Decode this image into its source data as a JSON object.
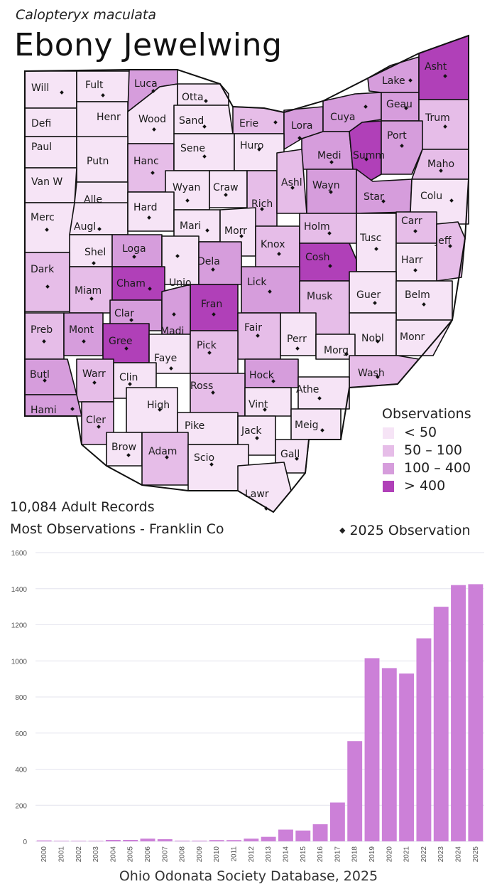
{
  "header": {
    "scientific_name": "Calopteryx maculata",
    "common_name": "Ebony Jewelwing"
  },
  "legend": {
    "title": "Observations",
    "items": [
      {
        "label": "< 50",
        "color": "#f6e4f6"
      },
      {
        "label": "50 – 100",
        "color": "#e6bde8"
      },
      {
        "label": "100 – 400",
        "color": "#d69ddc"
      },
      {
        "label": "> 400",
        "color": "#b040b8"
      }
    ]
  },
  "stats": {
    "records": "10,084 Adult Records",
    "most_observations": "Most Observations - Franklin Co",
    "obs_2025_label": "2025  Observation"
  },
  "source": "Ohio Odonata Society Database, 2025",
  "colors": {
    "lt50": "#f6e4f6",
    "c50_100": "#e6bde8",
    "c100_400": "#d69ddc",
    "gt400": "#b040b8",
    "bar": "#cc80d8"
  },
  "counties": [
    {
      "name": "Will",
      "cat": 0,
      "dot": true
    },
    {
      "name": "Fult",
      "cat": 0,
      "dot": true
    },
    {
      "name": "Luca",
      "cat": 2,
      "dot": true
    },
    {
      "name": "Otta",
      "cat": 0,
      "dot": true
    },
    {
      "name": "Defi",
      "cat": 0,
      "dot": false
    },
    {
      "name": "Henr",
      "cat": 0,
      "dot": false
    },
    {
      "name": "Wood",
      "cat": 0,
      "dot": true
    },
    {
      "name": "Sand",
      "cat": 0,
      "dot": true
    },
    {
      "name": "Erie",
      "cat": 1,
      "dot": true
    },
    {
      "name": "Lora",
      "cat": 2,
      "dot": true
    },
    {
      "name": "Cuya",
      "cat": 2,
      "dot": true
    },
    {
      "name": "Lake",
      "cat": 2,
      "dot": true
    },
    {
      "name": "Geau",
      "cat": 2,
      "dot": true
    },
    {
      "name": "Asht",
      "cat": 3,
      "dot": true
    },
    {
      "name": "Trum",
      "cat": 1,
      "dot": true
    },
    {
      "name": "Paul",
      "cat": 0,
      "dot": false
    },
    {
      "name": "Putn",
      "cat": 0,
      "dot": false
    },
    {
      "name": "Hanc",
      "cat": 1,
      "dot": true
    },
    {
      "name": "Sene",
      "cat": 0,
      "dot": true
    },
    {
      "name": "Huro",
      "cat": 0,
      "dot": true
    },
    {
      "name": "Medi",
      "cat": 2,
      "dot": true
    },
    {
      "name": "Summ",
      "cat": 3,
      "dot": true
    },
    {
      "name": "Port",
      "cat": 2,
      "dot": true
    },
    {
      "name": "Maho",
      "cat": 1,
      "dot": true
    },
    {
      "name": "Van W",
      "cat": 0,
      "dot": false
    },
    {
      "name": "Alle",
      "cat": 0,
      "dot": false
    },
    {
      "name": "Wyan",
      "cat": 0,
      "dot": true
    },
    {
      "name": "Craw",
      "cat": 0,
      "dot": true
    },
    {
      "name": "Rich",
      "cat": 1,
      "dot": true
    },
    {
      "name": "Ashl",
      "cat": 1,
      "dot": true
    },
    {
      "name": "Wayn",
      "cat": 2,
      "dot": true
    },
    {
      "name": "Star",
      "cat": 2,
      "dot": true
    },
    {
      "name": "Colu",
      "cat": 0,
      "dot": true
    },
    {
      "name": "Merc",
      "cat": 0,
      "dot": true
    },
    {
      "name": "Augl",
      "cat": 0,
      "dot": true
    },
    {
      "name": "Hard",
      "cat": 0,
      "dot": true
    },
    {
      "name": "Mari",
      "cat": 0,
      "dot": true
    },
    {
      "name": "Morr",
      "cat": 0,
      "dot": true
    },
    {
      "name": "Knox",
      "cat": 1,
      "dot": true
    },
    {
      "name": "Holm",
      "cat": 1,
      "dot": true
    },
    {
      "name": "Tusc",
      "cat": 0,
      "dot": true
    },
    {
      "name": "Carr",
      "cat": 1,
      "dot": true
    },
    {
      "name": "Jeff",
      "cat": 1,
      "dot": true
    },
    {
      "name": "Shel",
      "cat": 0,
      "dot": true
    },
    {
      "name": "Loga",
      "cat": 2,
      "dot": true
    },
    {
      "name": "Unio",
      "cat": 0,
      "dot": true
    },
    {
      "name": "Dela",
      "cat": 2,
      "dot": true
    },
    {
      "name": "Cosh",
      "cat": 3,
      "dot": true
    },
    {
      "name": "Harr",
      "cat": 0,
      "dot": true
    },
    {
      "name": "Dark",
      "cat": 1,
      "dot": true
    },
    {
      "name": "Miam",
      "cat": 1,
      "dot": true
    },
    {
      "name": "Cham",
      "cat": 3,
      "dot": true
    },
    {
      "name": "Lick",
      "cat": 2,
      "dot": true
    },
    {
      "name": "Musk",
      "cat": 1,
      "dot": false
    },
    {
      "name": "Guer",
      "cat": 0,
      "dot": true
    },
    {
      "name": "Belm",
      "cat": 0,
      "dot": true
    },
    {
      "name": "Clar",
      "cat": 2,
      "dot": true
    },
    {
      "name": "Fran",
      "cat": 3,
      "dot": true
    },
    {
      "name": "Madi",
      "cat": 2,
      "dot": true
    },
    {
      "name": "Preb",
      "cat": 1,
      "dot": true
    },
    {
      "name": "Mont",
      "cat": 2,
      "dot": true
    },
    {
      "name": "Gree",
      "cat": 3,
      "dot": true
    },
    {
      "name": "Fair",
      "cat": 1,
      "dot": true
    },
    {
      "name": "Perr",
      "cat": 0,
      "dot": true
    },
    {
      "name": "Nobl",
      "cat": 0,
      "dot": true
    },
    {
      "name": "Monr",
      "cat": 0,
      "dot": false
    },
    {
      "name": "Faye",
      "cat": 0,
      "dot": true
    },
    {
      "name": "Pick",
      "cat": 1,
      "dot": true
    },
    {
      "name": "Morg",
      "cat": 0,
      "dot": true
    },
    {
      "name": "Wash",
      "cat": 1,
      "dot": true
    },
    {
      "name": "Butl",
      "cat": 2,
      "dot": true
    },
    {
      "name": "Warr",
      "cat": 1,
      "dot": true
    },
    {
      "name": "Clin",
      "cat": 0,
      "dot": true
    },
    {
      "name": "Hock",
      "cat": 2,
      "dot": true
    },
    {
      "name": "Ross",
      "cat": 1,
      "dot": true
    },
    {
      "name": "Athe",
      "cat": 0,
      "dot": true
    },
    {
      "name": "Hami",
      "cat": 2,
      "dot": true
    },
    {
      "name": "Cler",
      "cat": 1,
      "dot": true
    },
    {
      "name": "High",
      "cat": 0,
      "dot": true
    },
    {
      "name": "Vint",
      "cat": 0,
      "dot": true
    },
    {
      "name": "Meig",
      "cat": 0,
      "dot": true
    },
    {
      "name": "Pike",
      "cat": 0,
      "dot": false
    },
    {
      "name": "Jack",
      "cat": 0,
      "dot": true
    },
    {
      "name": "Brow",
      "cat": 0,
      "dot": true
    },
    {
      "name": "Adam",
      "cat": 1,
      "dot": true
    },
    {
      "name": "Scio",
      "cat": 0,
      "dot": true
    },
    {
      "name": "Gall",
      "cat": 0,
      "dot": true
    },
    {
      "name": "Lawr",
      "cat": 0,
      "dot": true
    }
  ],
  "chart_data": {
    "type": "bar",
    "categories": [
      "2000",
      "2001",
      "2002",
      "2003",
      "2004",
      "2005",
      "2006",
      "2007",
      "2008",
      "2009",
      "2010",
      "2011",
      "2012",
      "2013",
      "2014",
      "2015",
      "2016",
      "2017",
      "2018",
      "2019",
      "2020",
      "2021",
      "2022",
      "2023",
      "2024",
      "2025"
    ],
    "values": [
      5,
      3,
      3,
      3,
      8,
      8,
      15,
      12,
      4,
      4,
      7,
      7,
      15,
      25,
      65,
      60,
      95,
      215,
      555,
      1015,
      960,
      930,
      1125,
      1300,
      1420,
      1425
    ],
    "title": "",
    "xlabel": "",
    "ylabel": "",
    "ylim": [
      0,
      1600
    ],
    "yticks": [
      0,
      200,
      400,
      600,
      800,
      1000,
      1200,
      1400,
      1600
    ],
    "grid": true
  }
}
